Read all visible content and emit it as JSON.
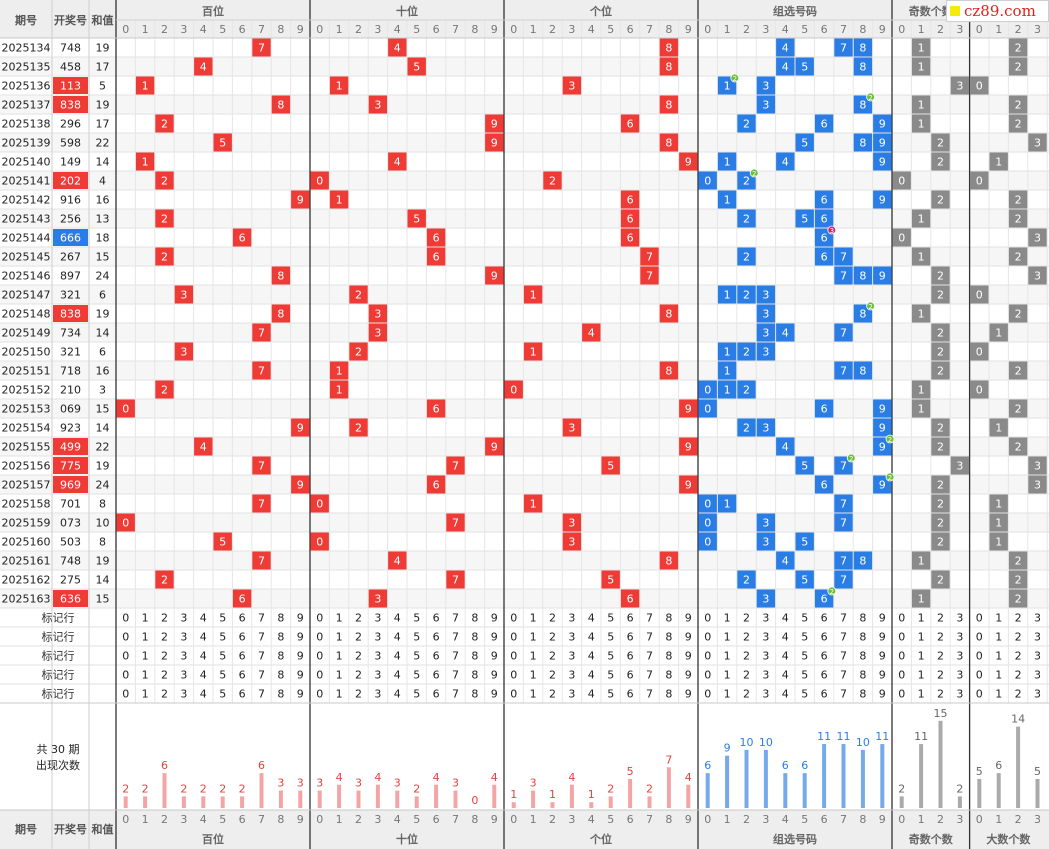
{
  "header": {
    "period": "期号",
    "number": "开奖号",
    "sum": "和值",
    "groups": [
      "百位",
      "十位",
      "个位",
      "组选号码",
      "奇数个数",
      "大数个数"
    ]
  },
  "watermark": {
    "text": "cz89.com"
  },
  "digits09": [
    "0",
    "1",
    "2",
    "3",
    "4",
    "5",
    "6",
    "7",
    "8",
    "9"
  ],
  "digits03": [
    "0",
    "1",
    "2",
    "3"
  ],
  "rows": [
    {
      "period": "2025134",
      "number": "748",
      "sum": "19",
      "hi": false
    },
    {
      "period": "2025135",
      "number": "458",
      "sum": "17",
      "hi": false
    },
    {
      "period": "2025136",
      "number": "113",
      "sum": "5",
      "hi": "red"
    },
    {
      "period": "2025137",
      "number": "838",
      "sum": "19",
      "hi": "red"
    },
    {
      "period": "2025138",
      "number": "296",
      "sum": "17",
      "hi": false
    },
    {
      "period": "2025139",
      "number": "598",
      "sum": "22",
      "hi": false
    },
    {
      "period": "2025140",
      "number": "149",
      "sum": "14",
      "hi": false
    },
    {
      "period": "2025141",
      "number": "202",
      "sum": "4",
      "hi": "red"
    },
    {
      "period": "2025142",
      "number": "916",
      "sum": "16",
      "hi": false
    },
    {
      "period": "2025143",
      "number": "256",
      "sum": "13",
      "hi": false
    },
    {
      "period": "2025144",
      "number": "666",
      "sum": "18",
      "hi": "blue"
    },
    {
      "period": "2025145",
      "number": "267",
      "sum": "15",
      "hi": false
    },
    {
      "period": "2025146",
      "number": "897",
      "sum": "24",
      "hi": false
    },
    {
      "period": "2025147",
      "number": "321",
      "sum": "6",
      "hi": false
    },
    {
      "period": "2025148",
      "number": "838",
      "sum": "19",
      "hi": "red"
    },
    {
      "period": "2025149",
      "number": "734",
      "sum": "14",
      "hi": false
    },
    {
      "period": "2025150",
      "number": "321",
      "sum": "6",
      "hi": false
    },
    {
      "period": "2025151",
      "number": "718",
      "sum": "16",
      "hi": false
    },
    {
      "period": "2025152",
      "number": "210",
      "sum": "3",
      "hi": false
    },
    {
      "period": "2025153",
      "number": "069",
      "sum": "15",
      "hi": false
    },
    {
      "period": "2025154",
      "number": "923",
      "sum": "14",
      "hi": false
    },
    {
      "period": "2025155",
      "number": "499",
      "sum": "22",
      "hi": "red"
    },
    {
      "period": "2025156",
      "number": "775",
      "sum": "19",
      "hi": "red"
    },
    {
      "period": "2025157",
      "number": "969",
      "sum": "24",
      "hi": "red"
    },
    {
      "period": "2025158",
      "number": "701",
      "sum": "8",
      "hi": false
    },
    {
      "period": "2025159",
      "number": "073",
      "sum": "10",
      "hi": false
    },
    {
      "period": "2025160",
      "number": "503",
      "sum": "8",
      "hi": false
    },
    {
      "period": "2025161",
      "number": "748",
      "sum": "19",
      "hi": false
    },
    {
      "period": "2025162",
      "number": "275",
      "sum": "14",
      "hi": false
    },
    {
      "period": "2025163",
      "number": "636",
      "sum": "15",
      "hi": "red"
    }
  ],
  "marker_label": "标记行",
  "marker_rows": 5,
  "summary": {
    "prefix": "共",
    "count": "30",
    "suffix": "期",
    "caption": "出现次数"
  },
  "stats": {
    "hundreds": [
      "2",
      "2",
      "6",
      "2",
      "2",
      "2",
      "2",
      "6",
      "3",
      "3"
    ],
    "tens": [
      "3",
      "4",
      "3",
      "4",
      "3",
      "2",
      "4",
      "3",
      "0",
      "4"
    ],
    "units": [
      "1",
      "3",
      "1",
      "4",
      "1",
      "2",
      "5",
      "2",
      "7",
      "4"
    ],
    "group": [
      "6",
      "9",
      "10",
      "10",
      "6",
      "6",
      "11",
      "11",
      "10",
      "11"
    ],
    "odd": [
      "2",
      "11",
      "15",
      "2"
    ],
    "big": [
      "5",
      "6",
      "14",
      "5"
    ]
  },
  "colors": {
    "red": "#ef3b36",
    "blue": "#2b7de6",
    "gray": "#8a8a8a",
    "bar_red": "#f4a4a4",
    "bar_blue": "#74a9ec",
    "bar_gray": "#aaaaaa"
  }
}
